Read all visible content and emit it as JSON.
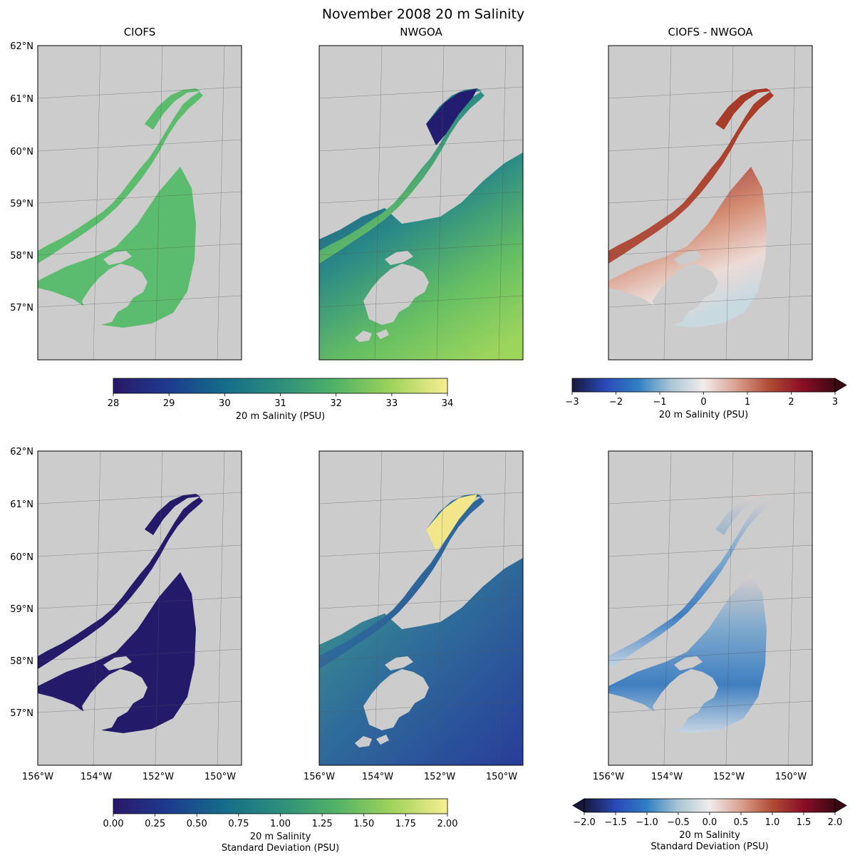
{
  "figure_title": "November 2008 20 m Salinity",
  "lat_tick_labels": [
    "62°N",
    "61°N",
    "60°N",
    "59°N",
    "58°N",
    "57°N"
  ],
  "lon_tick_labels": [
    "156°W",
    "154°W",
    "152°W",
    "150°W"
  ],
  "colors": {
    "land": "#cccccc",
    "sea": "#ffffff",
    "gridline": "#555555",
    "ciofs_mean": "#5cbc6e",
    "nwgoa_mean": "#3d8f83"
  },
  "chart_data": [
    {
      "type": "heatmap",
      "panel": "ciofs-mean",
      "title": "CIOFS",
      "variable": "20 m Salinity (PSU)",
      "xlim": [
        "156°W",
        "149°W"
      ],
      "ylim": [
        "56°N",
        "62°N"
      ],
      "value_range": [
        28,
        34
      ]
    },
    {
      "type": "heatmap",
      "panel": "nwgoa-mean",
      "title": "NWGOA",
      "variable": "20 m Salinity (PSU)",
      "xlim": [
        "156°W",
        "149°W"
      ],
      "ylim": [
        "56°N",
        "62°N"
      ],
      "value_range": [
        28,
        34
      ]
    },
    {
      "type": "heatmap",
      "panel": "diff-mean",
      "title": "CIOFS - NWGOA",
      "variable": "20 m Salinity (PSU)",
      "xlim": [
        "156°W",
        "149°W"
      ],
      "ylim": [
        "56°N",
        "62°N"
      ],
      "value_range": [
        -3,
        3
      ]
    },
    {
      "type": "heatmap",
      "panel": "ciofs-std",
      "title": "",
      "variable": "20 m Salinity Standard Deviation (PSU)",
      "xlim": [
        "156°W",
        "149°W"
      ],
      "ylim": [
        "56°N",
        "62°N"
      ],
      "value_range": [
        0,
        2
      ]
    },
    {
      "type": "heatmap",
      "panel": "nwgoa-std",
      "title": "",
      "variable": "20 m Salinity Standard Deviation (PSU)",
      "xlim": [
        "156°W",
        "149°W"
      ],
      "ylim": [
        "56°N",
        "62°N"
      ],
      "value_range": [
        0,
        2
      ]
    },
    {
      "type": "heatmap",
      "panel": "diff-std",
      "title": "",
      "variable": "20 m Salinity Standard Deviation (PSU)",
      "xlim": [
        "156°W",
        "149°W"
      ],
      "ylim": [
        "56°N",
        "62°N"
      ],
      "value_range": [
        -2,
        2
      ]
    }
  ],
  "colorbars": [
    {
      "name": "salinity-mean",
      "ticks": [
        "28",
        "29",
        "30",
        "31",
        "32",
        "33",
        "34"
      ],
      "label_lines": [
        "20 m Salinity (PSU)"
      ],
      "colormap": "haline",
      "stops": [
        "#2a1869",
        "#1d3c8f",
        "#146d8a",
        "#2c8f7c",
        "#52b266",
        "#9fd35b",
        "#f8ee90"
      ]
    },
    {
      "name": "salinity-diff",
      "ticks": [
        "−3",
        "−2",
        "−1",
        "0",
        "1",
        "2",
        "3"
      ],
      "label_lines": [
        "20 m Salinity (PSU)"
      ],
      "colormap": "balance",
      "extend": "max",
      "stops": [
        "#16193b",
        "#2a49b7",
        "#2f7fc4",
        "#a9c6d4",
        "#f1eceb",
        "#d9a08f",
        "#b04b33",
        "#8a0e27",
        "#3c0912"
      ]
    },
    {
      "name": "std-mean",
      "ticks": [
        "0.00",
        "0.25",
        "0.50",
        "0.75",
        "1.00",
        "1.25",
        "1.50",
        "1.75",
        "2.00"
      ],
      "label_lines": [
        "20 m Salinity",
        "Standard Deviation (PSU)"
      ],
      "colormap": "haline",
      "stops": [
        "#2a1869",
        "#1d3c8f",
        "#146d8a",
        "#2c8f7c",
        "#52b266",
        "#9fd35b",
        "#f8ee90"
      ]
    },
    {
      "name": "std-diff",
      "ticks": [
        "−2.0",
        "−1.5",
        "−1.0",
        "−0.5",
        "0.0",
        "0.5",
        "1.0",
        "1.5",
        "2.0"
      ],
      "label_lines": [
        "20 m Salinity",
        "Standard Deviation (PSU)"
      ],
      "colormap": "balance",
      "extend": "both",
      "stops": [
        "#16193b",
        "#2a49b7",
        "#2f7fc4",
        "#a9c6d4",
        "#f1eceb",
        "#d9a08f",
        "#b04b33",
        "#8a0e27",
        "#3c0912"
      ]
    }
  ]
}
